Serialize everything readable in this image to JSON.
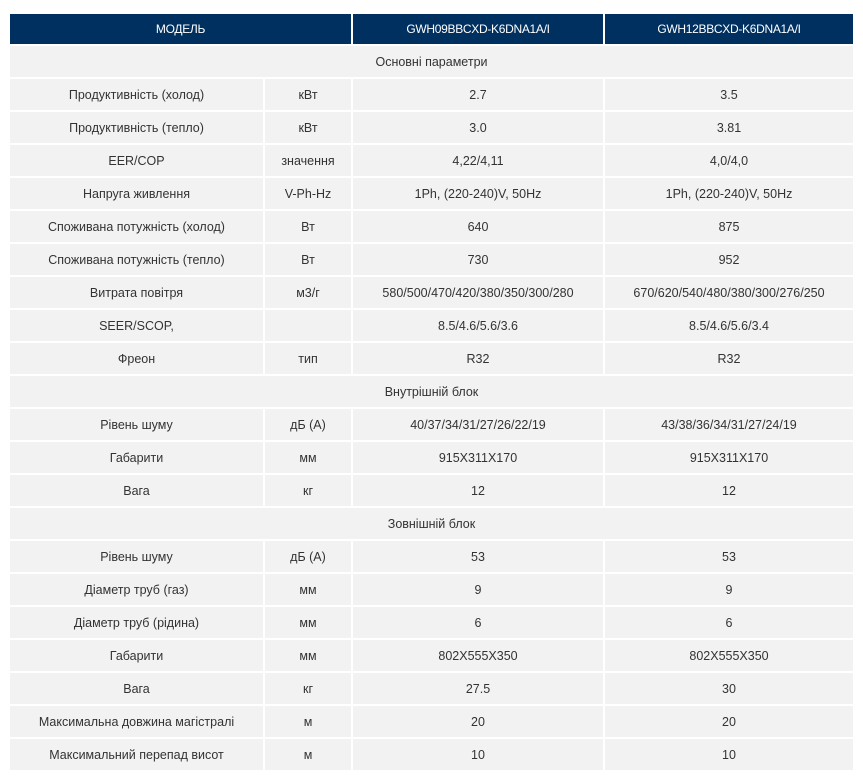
{
  "header": {
    "model_label": "МОДЕЛЬ",
    "models": [
      "GWH09BBCXD-K6DNA1A/I",
      "GWH12BBCXD-K6DNA1A/I"
    ]
  },
  "colors": {
    "header_bg": "#00305f",
    "cell_bg": "#f2f2f2",
    "text": "#333333"
  },
  "rows": [
    {
      "section": "Основні параметри"
    },
    {
      "param": "Продуктивність (холод)",
      "unit": "кВт",
      "v1": "2.7",
      "v2": "3.5"
    },
    {
      "param": "Продуктивність (тепло)",
      "unit": "кВт",
      "v1": "3.0",
      "v2": "3.81"
    },
    {
      "param": "EER/COP",
      "unit": "значення",
      "v1": "4,22/4,11",
      "v2": "4,0/4,0"
    },
    {
      "param": "Напруга живлення",
      "unit": "V-Ph-Hz",
      "v1": "1Ph, (220-240)V, 50Hz",
      "v2": "1Ph, (220-240)V, 50Hz"
    },
    {
      "param": "Споживана потужність (холод)",
      "unit": "Вт",
      "v1": "640",
      "v2": "875"
    },
    {
      "param": "Споживана потужність (тепло)",
      "unit": "Вт",
      "v1": "730",
      "v2": "952"
    },
    {
      "param": "Витрата повітря",
      "unit": "м3/г",
      "v1": "580/500/470/420/380/350/300/280",
      "v2": "670/620/540/480/380/300/276/250"
    },
    {
      "param": "SEER/SCOP,",
      "unit": "",
      "v1": "8.5/4.6/5.6/3.6",
      "v2": "8.5/4.6/5.6/3.4"
    },
    {
      "param": "Фреон",
      "unit": "тип",
      "v1": "R32",
      "v2": "R32"
    },
    {
      "section": "Внутрішній блок"
    },
    {
      "param": "Рівень шуму",
      "unit": "дБ (А)",
      "v1": "40/37/34/31/27/26/22/19",
      "v2": "43/38/36/34/31/27/24/19"
    },
    {
      "param": "Габарити",
      "unit": "мм",
      "v1": "915X311X170",
      "v2": "915X311X170"
    },
    {
      "param": "Вага",
      "unit": "кг",
      "v1": "12",
      "v2": "12"
    },
    {
      "section": "Зовнішній блок"
    },
    {
      "param": "Рівень шуму",
      "unit": "дБ (А)",
      "v1": "53",
      "v2": "53"
    },
    {
      "param": "Діаметр труб (газ)",
      "unit": "мм",
      "v1": "9",
      "v2": "9"
    },
    {
      "param": "Діаметр труб (рідина)",
      "unit": "мм",
      "v1": "6",
      "v2": "6"
    },
    {
      "param": "Габарити",
      "unit": "мм",
      "v1": "802X555X350",
      "v2": "802X555X350"
    },
    {
      "param": "Вага",
      "unit": "кг",
      "v1": "27.5",
      "v2": "30"
    },
    {
      "param": "Максимальна довжина магістралі",
      "unit": "м",
      "v1": "20",
      "v2": "20"
    },
    {
      "param": "Максимальний перепад висот",
      "unit": "м",
      "v1": "10",
      "v2": "10"
    }
  ]
}
